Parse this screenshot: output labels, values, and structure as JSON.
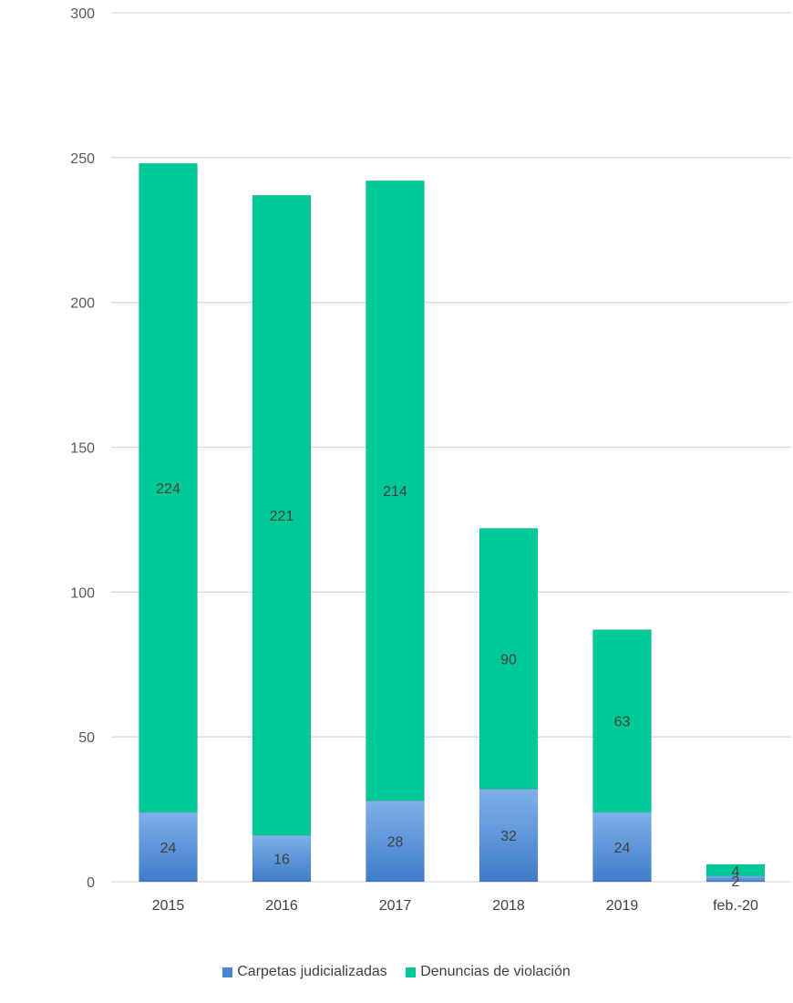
{
  "chart_data": {
    "type": "bar",
    "stacked": true,
    "categories": [
      "2015",
      "2016",
      "2017",
      "2018",
      "2019",
      "feb.-20"
    ],
    "series": [
      {
        "name": "Carpetas judicializadas",
        "values": [
          24,
          16,
          28,
          32,
          24,
          2
        ],
        "color": "#4a86d0"
      },
      {
        "name": "Denuncias de violación",
        "values": [
          224,
          221,
          214,
          90,
          63,
          4
        ],
        "color": "#00c896"
      }
    ],
    "ylim": [
      0,
      300
    ],
    "yticks": [
      0,
      50,
      100,
      150,
      200,
      250,
      300
    ],
    "grid": true,
    "legend_position": "bottom",
    "data_labels": true
  }
}
